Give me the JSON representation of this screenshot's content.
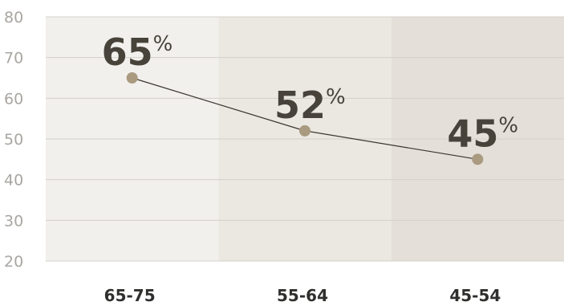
{
  "chart_data": {
    "type": "line",
    "categories": [
      "65-75",
      "55-64",
      "45-54"
    ],
    "values": [
      65,
      52,
      45
    ],
    "data_labels": [
      "65",
      "52",
      "45"
    ],
    "value_suffix": "%",
    "ylim": [
      20,
      80
    ],
    "yticks": [
      "20",
      "30",
      "40",
      "50",
      "60",
      "70",
      "80"
    ],
    "grid": true,
    "legend": "none",
    "colors": {
      "band_backgrounds": [
        "#f2f0ec",
        "#ebe7e1",
        "#e4dfd8"
      ],
      "gridline": "#d3d0cb",
      "line": "#3a352f",
      "marker": "#a99a80",
      "label": "#47433b",
      "tick": "#a9a6a1",
      "category": "#2f2f2d"
    }
  }
}
